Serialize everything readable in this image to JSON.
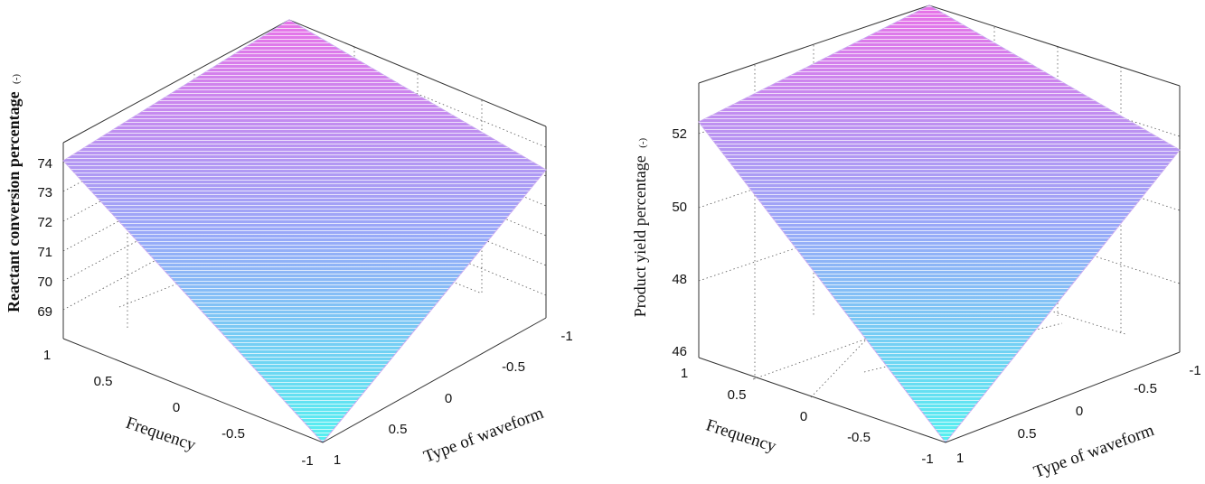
{
  "chart_data": [
    {
      "type": "surface",
      "title": "",
      "zlabel": "Reactant conversion percentage",
      "zlabel_unit": "(-)",
      "xlabel": "Frequency",
      "ylabel": "Type of waveform",
      "x_ticks": [
        "1",
        "0.5",
        "0",
        "-0.5",
        "-1"
      ],
      "y_ticks": [
        "-1",
        "-0.5",
        "0",
        "0.5",
        "1"
      ],
      "z_ticks": [
        "69",
        "70",
        "71",
        "72",
        "73",
        "74"
      ],
      "zlim": [
        68.3,
        74.3
      ],
      "grid": true,
      "colormap": [
        "#55f0f0",
        "#9aa8f8",
        "#e873e8"
      ],
      "corner_values": {
        "freq_1_wave_-1": 74.3,
        "freq_1_wave_1": 74.0,
        "freq_-1_wave_-1": 73.6,
        "freq_-1_wave_1": 68.3
      }
    },
    {
      "type": "surface",
      "title": "",
      "zlabel": "Product yield percentage",
      "zlabel_unit": "(-)",
      "xlabel": "Frequency",
      "ylabel": "Type of waveform",
      "x_ticks": [
        "1",
        "0.5",
        "0",
        "-0.5",
        "-1"
      ],
      "y_ticks": [
        "-1",
        "-0.5",
        "0",
        "0.5",
        "1"
      ],
      "z_ticks": [
        "46",
        "48",
        "50",
        "52"
      ],
      "zlim": [
        45.9,
        53.4
      ],
      "grid": true,
      "colormap": [
        "#55f0f0",
        "#9aa8f8",
        "#e873e8"
      ],
      "corner_values": {
        "freq_1_wave_-1": 53.4,
        "freq_1_wave_1": 52.2,
        "freq_-1_wave_-1": 51.5,
        "freq_-1_wave_1": 45.9
      }
    }
  ]
}
